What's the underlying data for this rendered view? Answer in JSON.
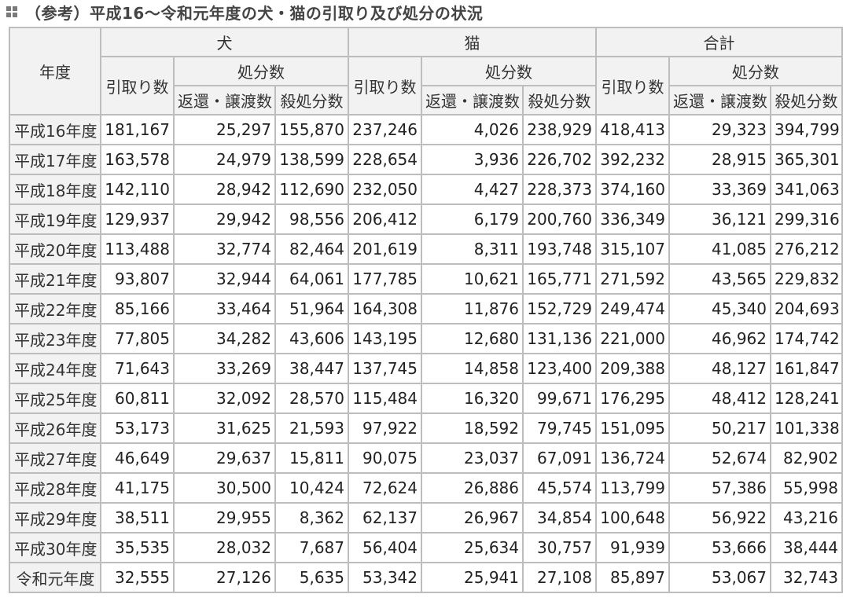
{
  "title": "（参考）平成16～令和元年度の犬・猫の引取り及び処分の状況",
  "header": {
    "year": "年度",
    "groups": [
      "犬",
      "猫",
      "合計"
    ],
    "intake": "引取り数",
    "disposal": "処分数",
    "return": "返還・譲渡数",
    "kill": "殺処分数"
  },
  "rows": [
    {
      "year": "平成16年度",
      "cells": [
        "181,167",
        "25,297",
        "155,870",
        "237,246",
        "4,026",
        "238,929",
        "418,413",
        "29,323",
        "394,799"
      ]
    },
    {
      "year": "平成17年度",
      "cells": [
        "163,578",
        "24,979",
        "138,599",
        "228,654",
        "3,936",
        "226,702",
        "392,232",
        "28,915",
        "365,301"
      ]
    },
    {
      "year": "平成18年度",
      "cells": [
        "142,110",
        "28,942",
        "112,690",
        "232,050",
        "4,427",
        "228,373",
        "374,160",
        "33,369",
        "341,063"
      ]
    },
    {
      "year": "平成19年度",
      "cells": [
        "129,937",
        "29,942",
        "98,556",
        "206,412",
        "6,179",
        "200,760",
        "336,349",
        "36,121",
        "299,316"
      ]
    },
    {
      "year": "平成20年度",
      "cells": [
        "113,488",
        "32,774",
        "82,464",
        "201,619",
        "8,311",
        "193,748",
        "315,107",
        "41,085",
        "276,212"
      ]
    },
    {
      "year": "平成21年度",
      "cells": [
        "93,807",
        "32,944",
        "64,061",
        "177,785",
        "10,621",
        "165,771",
        "271,592",
        "43,565",
        "229,832"
      ]
    },
    {
      "year": "平成22年度",
      "cells": [
        "85,166",
        "33,464",
        "51,964",
        "164,308",
        "11,876",
        "152,729",
        "249,474",
        "45,340",
        "204,693"
      ]
    },
    {
      "year": "平成23年度",
      "cells": [
        "77,805",
        "34,282",
        "43,606",
        "143,195",
        "12,680",
        "131,136",
        "221,000",
        "46,962",
        "174,742"
      ]
    },
    {
      "year": "平成24年度",
      "cells": [
        "71,643",
        "33,269",
        "38,447",
        "137,745",
        "14,858",
        "123,400",
        "209,388",
        "48,127",
        "161,847"
      ]
    },
    {
      "year": "平成25年度",
      "cells": [
        "60,811",
        "32,092",
        "28,570",
        "115,484",
        "16,320",
        "99,671",
        "176,295",
        "48,412",
        "128,241"
      ]
    },
    {
      "year": "平成26年度",
      "cells": [
        "53,173",
        "31,625",
        "21,593",
        "97,922",
        "18,592",
        "79,745",
        "151,095",
        "50,217",
        "101,338"
      ]
    },
    {
      "year": "平成27年度",
      "cells": [
        "46,649",
        "29,637",
        "15,811",
        "90,075",
        "23,037",
        "67,091",
        "136,724",
        "52,674",
        "82,902"
      ]
    },
    {
      "year": "平成28年度",
      "cells": [
        "41,175",
        "30,500",
        "10,424",
        "72,624",
        "26,886",
        "45,574",
        "113,799",
        "57,386",
        "55,998"
      ]
    },
    {
      "year": "平成29年度",
      "cells": [
        "38,511",
        "29,955",
        "8,362",
        "62,137",
        "26,967",
        "34,854",
        "100,648",
        "56,922",
        "43,216"
      ]
    },
    {
      "year": "平成30年度",
      "cells": [
        "35,535",
        "28,032",
        "7,687",
        "56,404",
        "25,634",
        "30,757",
        "91,939",
        "53,666",
        "38,444"
      ]
    },
    {
      "year": "令和元年度",
      "cells": [
        "32,555",
        "27,126",
        "5,635",
        "53,342",
        "25,941",
        "27,108",
        "85,897",
        "53,067",
        "32,743"
      ]
    }
  ]
}
